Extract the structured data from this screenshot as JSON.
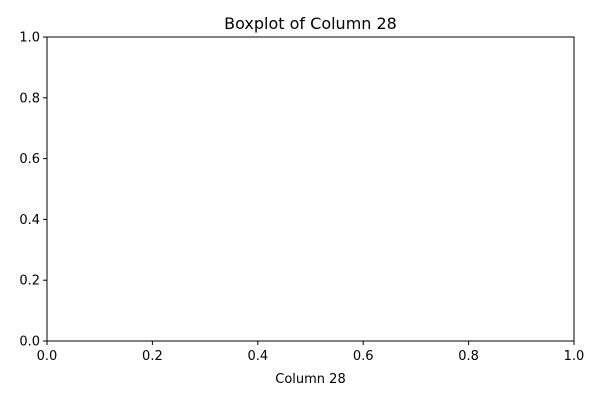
{
  "chart_data": {
    "type": "box",
    "title": "Boxplot of Column 28",
    "xlabel": "Column 28",
    "ylabel": "",
    "xlim": [
      0.0,
      1.0
    ],
    "ylim": [
      0.0,
      1.0
    ],
    "x_ticks": [
      "0.0",
      "0.2",
      "0.4",
      "0.6",
      "0.8",
      "1.0"
    ],
    "y_ticks": [
      "0.0",
      "0.2",
      "0.4",
      "0.6",
      "0.8",
      "1.0"
    ],
    "series": [],
    "grid": false,
    "legend": "none"
  }
}
